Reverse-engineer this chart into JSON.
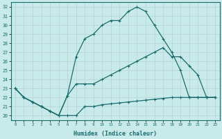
{
  "xlabel": "Humidex (Indice chaleur)",
  "bg_color": "#c8eaea",
  "line_color": "#1a6b6b",
  "grid_color": "#b8d8d8",
  "xlim": [
    -0.5,
    23.5
  ],
  "ylim": [
    19.5,
    32.5
  ],
  "xticks": [
    0,
    1,
    2,
    3,
    4,
    5,
    6,
    7,
    8,
    9,
    10,
    11,
    12,
    13,
    14,
    15,
    16,
    17,
    18,
    19,
    20,
    21,
    22,
    23
  ],
  "yticks": [
    20,
    21,
    22,
    23,
    24,
    25,
    26,
    27,
    28,
    29,
    30,
    31,
    32
  ],
  "line1_x": [
    0,
    1,
    2,
    3,
    4,
    5,
    6,
    7,
    8,
    9,
    10,
    11,
    12,
    13,
    14,
    15,
    16,
    17,
    18,
    19,
    20,
    21,
    22,
    23
  ],
  "line1_y": [
    23.0,
    22.0,
    21.5,
    21.0,
    20.5,
    20.0,
    20.0,
    20.0,
    21.0,
    21.0,
    21.2,
    21.3,
    21.4,
    21.5,
    21.6,
    21.7,
    21.8,
    21.9,
    22.0,
    22.0,
    22.0,
    22.0,
    22.0,
    22.0
  ],
  "line2_x": [
    0,
    1,
    2,
    3,
    4,
    5,
    6,
    7,
    8,
    9,
    10,
    11,
    12,
    13,
    14,
    15,
    16,
    17,
    18,
    19,
    20,
    21,
    22,
    23
  ],
  "line2_y": [
    23.0,
    22.0,
    21.5,
    21.0,
    20.5,
    20.0,
    22.2,
    26.5,
    28.5,
    29.0,
    30.0,
    30.5,
    30.5,
    31.5,
    32.0,
    31.5,
    30.0,
    28.5,
    27.0,
    25.0,
    22.0,
    22.0,
    22.0,
    22.0
  ],
  "line3_x": [
    0,
    1,
    2,
    3,
    4,
    5,
    6,
    7,
    8,
    9,
    10,
    11,
    12,
    13,
    14,
    15,
    16,
    17,
    18,
    19,
    20,
    21,
    22,
    23
  ],
  "line3_y": [
    23.0,
    22.0,
    21.5,
    21.0,
    20.5,
    20.0,
    22.2,
    23.5,
    23.5,
    23.5,
    24.0,
    24.5,
    25.0,
    25.5,
    26.0,
    26.5,
    27.0,
    27.5,
    26.5,
    26.5,
    25.5,
    24.5,
    22.0,
    22.0
  ],
  "marker_size": 3,
  "linewidth": 0.9
}
